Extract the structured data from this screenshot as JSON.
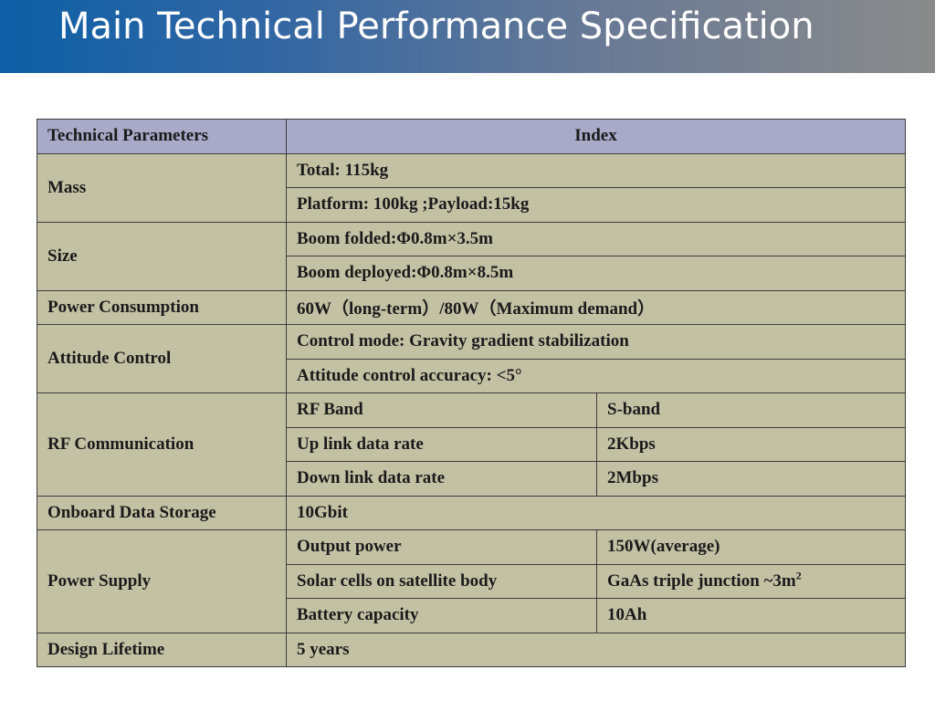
{
  "header": {
    "title": "Main Technical Performance Specification"
  },
  "table": {
    "headers": {
      "param": "Technical Parameters",
      "index": "Index"
    },
    "mass": {
      "label": "Mass",
      "total": "Total: 115kg",
      "breakdown": "Platform: 100kg ;Payload:15kg"
    },
    "size": {
      "label": "Size",
      "folded": "Boom folded:Φ0.8m×3.5m",
      "deployed": "Boom deployed:Φ0.8m×8.5m"
    },
    "power_consumption": {
      "label": "Power Consumption",
      "value": "60W（long-term）/80W（Maximum demand）"
    },
    "attitude_control": {
      "label": "Attitude Control",
      "mode": "Control mode: Gravity gradient stabilization",
      "accuracy": "Attitude control accuracy: <5°"
    },
    "rf_communication": {
      "label": "RF Communication",
      "rows": [
        {
          "name": "RF Band",
          "value": "S-band"
        },
        {
          "name": "Up link data rate",
          "value": "2Kbps"
        },
        {
          "name": "Down link data rate",
          "value": "2Mbps"
        }
      ]
    },
    "onboard_storage": {
      "label": "Onboard Data Storage",
      "value": "10Gbit"
    },
    "power_supply": {
      "label": "Power Supply",
      "rows": [
        {
          "name": "Output power",
          "value": "150W(average)"
        },
        {
          "name": "Solar cells on satellite body",
          "value": "GaAs triple junction ~3m",
          "sup": "2"
        },
        {
          "name": "Battery capacity",
          "value": "10Ah"
        }
      ]
    },
    "design_lifetime": {
      "label": "Design Lifetime",
      "value": "5 years"
    }
  }
}
